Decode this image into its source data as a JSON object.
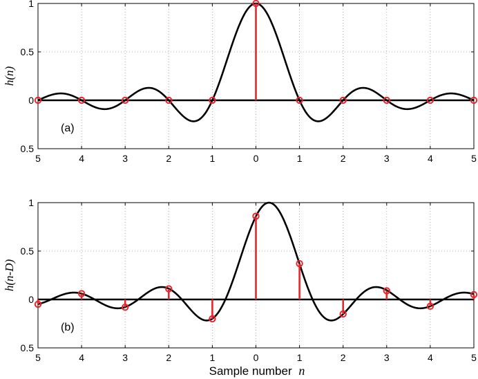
{
  "chart_data": [
    {
      "type": "line",
      "panel_label": "(a)",
      "ylabel": "h(n)",
      "xlabel": "",
      "xlim": [
        -5,
        5
      ],
      "ylim": [
        -0.5,
        1
      ],
      "x_tick_labels": [
        "5",
        "4",
        "3",
        "2",
        "1",
        "0",
        "1",
        "2",
        "3",
        "4",
        "5"
      ],
      "y_tick_labels": [
        "1",
        "0.5",
        "0",
        "0.5"
      ],
      "y_tick_values": [
        1,
        0.5,
        0,
        -0.5
      ],
      "grid": "dotted",
      "series": [
        {
          "kind": "continuous",
          "color": "#000000",
          "delay": 0,
          "x": [
            -5,
            -4.5,
            -4,
            -3.5,
            -3,
            -2.5,
            -2,
            -1.5,
            -1,
            -0.5,
            0,
            0.5,
            1,
            1.5,
            2,
            2.5,
            3,
            3.5,
            4,
            4.5,
            5
          ],
          "y": [
            0,
            0.071,
            0,
            -0.091,
            0,
            0.127,
            0,
            -0.212,
            0,
            0.637,
            1,
            0.637,
            0,
            -0.212,
            0,
            0.127,
            0,
            -0.091,
            0,
            0.071,
            0
          ]
        },
        {
          "kind": "stem",
          "color": "#e8262a",
          "n": [
            -5,
            -4,
            -3,
            -2,
            -1,
            0,
            1,
            2,
            3,
            4,
            5
          ],
          "values": [
            0,
            0,
            0,
            0,
            0,
            1,
            0,
            0,
            0,
            0,
            0
          ]
        }
      ]
    },
    {
      "type": "line",
      "panel_label": "(b)",
      "ylabel": "h(n-D)",
      "xlabel": "Sample number n",
      "xlim": [
        -5,
        5
      ],
      "ylim": [
        -0.5,
        1
      ],
      "x_tick_labels": [
        "5",
        "4",
        "3",
        "2",
        "1",
        "0",
        "1",
        "2",
        "3",
        "4",
        "5"
      ],
      "y_tick_labels": [
        "1",
        "0.5",
        "0",
        "0.5"
      ],
      "y_tick_values": [
        1,
        0.5,
        0,
        -0.5
      ],
      "grid": "dotted",
      "series": [
        {
          "kind": "continuous",
          "color": "#000000",
          "delay": 0.3,
          "x": [
            -5,
            -4.5,
            -4,
            -3.5,
            -3,
            -2.5,
            -2,
            -1.5,
            -1,
            -0.5,
            0,
            0.3,
            0.5,
            1,
            1.5,
            2,
            2.5,
            3,
            3.5,
            4,
            4.5,
            5
          ],
          "y": [
            -0.05,
            0.07,
            0.06,
            -0.07,
            -0.08,
            0.11,
            0.11,
            -0.17,
            -0.2,
            0.5,
            0.86,
            1,
            0.94,
            0.37,
            -0.21,
            -0.15,
            0.12,
            0.09,
            -0.08,
            -0.07,
            0.06,
            0.05
          ]
        },
        {
          "kind": "stem",
          "color": "#e8262a",
          "n": [
            -5,
            -4,
            -3,
            -2,
            -1,
            0,
            1,
            2,
            3,
            4,
            5
          ],
          "values": [
            -0.05,
            0.06,
            -0.08,
            0.11,
            -0.2,
            0.86,
            0.37,
            -0.15,
            0.09,
            -0.07,
            0.05
          ]
        }
      ]
    }
  ],
  "xlabel_text": "Sample number",
  "xlabel_var": "n"
}
